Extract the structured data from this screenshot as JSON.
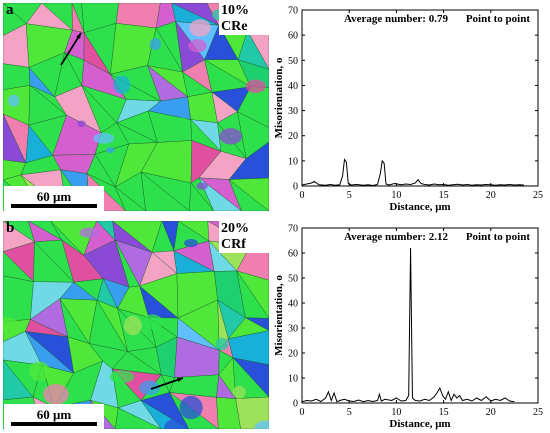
{
  "panels": [
    {
      "letter": "a",
      "condition": "10% CR",
      "scalebar": "60 μm",
      "chart_letter": "e"
    },
    {
      "letter": "b",
      "condition": "20% CR",
      "scalebar": "60 μm",
      "chart_letter": "f"
    }
  ],
  "colors": {
    "grain_palette": [
      "#2ee14c",
      "#4fe83a",
      "#21c9a8",
      "#3a9ef0",
      "#2850d8",
      "#8a4ad6",
      "#d65fd0",
      "#f07fb0",
      "#f4a3c4",
      "#6fd9e6",
      "#9de25a",
      "#18b0d8",
      "#b16be0",
      "#1fd070",
      "#60c0ff",
      "#e04fa0"
    ],
    "line": "#000000"
  },
  "chart_data": [
    {
      "type": "line",
      "annotation_left": "Average number: 0.79",
      "annotation_right": "Point to point",
      "xlabel": "Distance, μm",
      "ylabel": "Misorientation, o",
      "xlim": [
        0,
        25
      ],
      "ylim": [
        0,
        70
      ],
      "xticks": [
        "0",
        "5",
        "10",
        "15",
        "20",
        "25"
      ],
      "yticks": [
        "0",
        "10",
        "20",
        "30",
        "40",
        "50",
        "60",
        "70"
      ],
      "x": [
        0,
        0.5,
        1.0,
        1.3,
        1.8,
        2.5,
        3.0,
        3.5,
        4.0,
        4.3,
        4.5,
        4.7,
        4.9,
        5.2,
        5.8,
        6.5,
        7.0,
        7.5,
        8.0,
        8.3,
        8.5,
        8.7,
        8.9,
        9.2,
        9.8,
        10.5,
        11.0,
        11.5,
        12.0,
        12.3,
        12.6,
        13.0,
        13.5,
        14.0,
        14.5,
        15.0,
        15.5,
        16.0,
        16.5,
        17.0,
        17.5,
        18.0,
        18.5,
        19.0,
        19.5,
        20.0,
        20.5,
        21.0,
        21.5,
        22.0,
        22.5,
        23.0,
        23.5
      ],
      "y": [
        0.4,
        0.8,
        1.2,
        1.8,
        0.5,
        0.3,
        0.6,
        0.3,
        0.5,
        4.0,
        10.5,
        9.5,
        1.0,
        0.4,
        0.6,
        0.3,
        0.5,
        0.2,
        0.6,
        5.0,
        10.0,
        9.0,
        0.8,
        0.4,
        1.0,
        0.5,
        0.8,
        0.6,
        1.2,
        2.5,
        1.0,
        0.6,
        0.4,
        0.8,
        0.5,
        0.6,
        0.3,
        0.5,
        0.7,
        0.4,
        0.6,
        0.3,
        0.5,
        0.4,
        0.6,
        0.5,
        0.3,
        0.5,
        0.4,
        0.6,
        0.4,
        0.5,
        0.4
      ]
    },
    {
      "type": "line",
      "annotation_left": "Average number: 2.12",
      "annotation_right": "Point to point",
      "xlabel": "Distance, μm",
      "ylabel": "Misorientation, o",
      "xlim": [
        0,
        25
      ],
      "ylim": [
        0,
        70
      ],
      "xticks": [
        "0",
        "5",
        "10",
        "15",
        "20",
        "25"
      ],
      "yticks": [
        "0",
        "10",
        "20",
        "30",
        "40",
        "50",
        "60",
        "70"
      ],
      "x": [
        0,
        0.5,
        1.0,
        1.5,
        2.0,
        2.5,
        2.8,
        3.1,
        3.4,
        3.7,
        4.0,
        4.5,
        5.0,
        5.5,
        6.0,
        6.5,
        7.0,
        7.5,
        8.0,
        8.2,
        8.4,
        8.8,
        9.5,
        10.0,
        10.5,
        11.0,
        11.3,
        11.5,
        11.7,
        12.0,
        12.5,
        13.0,
        13.5,
        14.0,
        14.3,
        14.6,
        14.9,
        15.2,
        15.5,
        15.8,
        16.1,
        16.4,
        16.7,
        17.0,
        17.5,
        18.0,
        18.5,
        19.0,
        19.5,
        20.0,
        20.5,
        21.0,
        21.5,
        22.0,
        22.5
      ],
      "y": [
        0.5,
        1.0,
        0.8,
        1.5,
        0.6,
        2.0,
        4.5,
        1.0,
        4.0,
        0.5,
        1.0,
        1.5,
        0.8,
        0.6,
        1.2,
        0.5,
        1.0,
        0.6,
        1.0,
        3.5,
        0.8,
        1.5,
        1.0,
        2.0,
        0.8,
        1.0,
        3.0,
        62.0,
        2.0,
        1.0,
        0.8,
        1.5,
        1.0,
        2.5,
        4.0,
        6.0,
        3.0,
        1.5,
        4.5,
        1.0,
        3.5,
        2.0,
        3.0,
        1.0,
        1.5,
        0.8,
        2.0,
        1.0,
        2.5,
        0.8,
        1.5,
        1.0,
        2.0,
        0.8,
        0.5
      ]
    }
  ]
}
